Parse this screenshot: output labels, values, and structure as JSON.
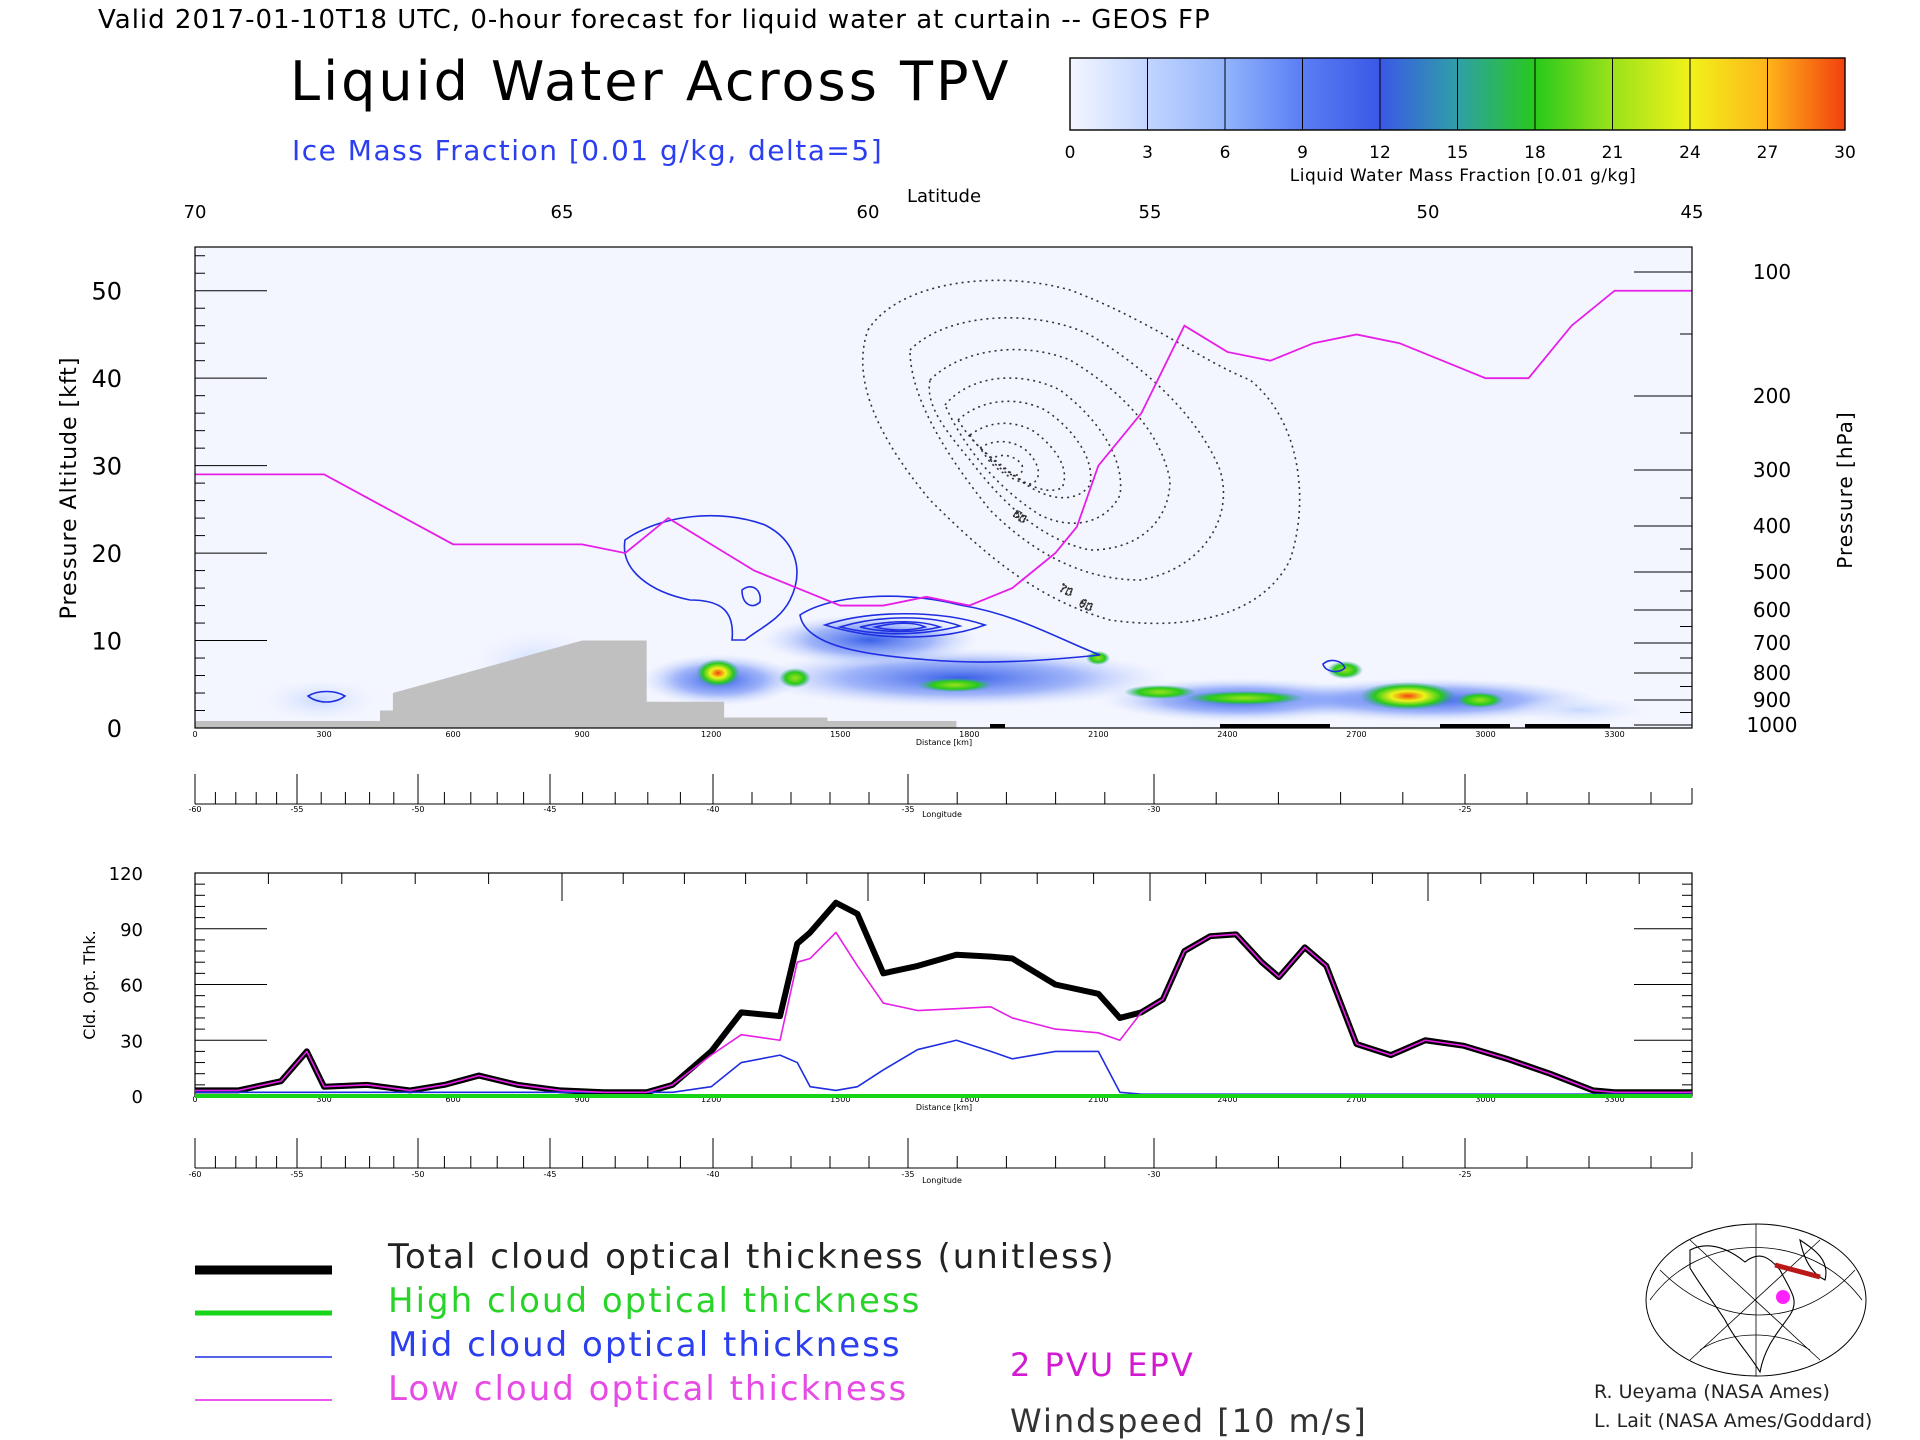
{
  "header": {
    "valid_line": "Valid 2017-01-10T18 UTC, 0-hour forecast for liquid water at curtain -- GEOS FP",
    "title": "Liquid Water Across TPV",
    "subtitle": "Ice Mass Fraction [0.01 g/kg, delta=5]"
  },
  "colorbar": {
    "ticks": [
      "0",
      "3",
      "6",
      "9",
      "12",
      "15",
      "18",
      "21",
      "24",
      "27",
      "30"
    ],
    "label": "Liquid Water Mass Fraction [0.01 g/kg]",
    "colors": [
      "#f4f6ff",
      "#c2d5ff",
      "#93b4fb",
      "#5a7ef5",
      "#3a58e6",
      "#2f9fa8",
      "#28c91c",
      "#9be21a",
      "#f1f21a",
      "#ffb41a",
      "#f2400e"
    ]
  },
  "colors": {
    "ice_contour": "#1e2ee0",
    "epv_line": "#e61ee6",
    "terrain": "#c0c0c0",
    "total_line": "#000000",
    "high_line": "#18d418",
    "mid_line": "#1e2ee0",
    "low_line": "#e61ee6"
  },
  "chart_data": [
    {
      "type": "heatmap",
      "title": "Liquid Water Across TPV",
      "top_axis_label": "Latitude",
      "latitude_ticks": [
        "70",
        "65",
        "60",
        "55",
        "50",
        "45"
      ],
      "ylabel_left": "Pressure Altitude [kft]",
      "ylim_kft": [
        0,
        55
      ],
      "left_ticks": [
        "0",
        "10",
        "20",
        "30",
        "40",
        "50"
      ],
      "ylabel_right": "Pressure [hPa]",
      "pressure_ticks": [
        "100",
        "200",
        "300",
        "400",
        "500",
        "600",
        "700",
        "800",
        "900",
        "1000"
      ],
      "xlabel": "Distance [km]",
      "distance_ticks": [
        "0",
        "300",
        "600",
        "900",
        "1200",
        "1500",
        "1800",
        "2100",
        "2400",
        "2700",
        "3000",
        "3300"
      ],
      "xlim_km": [
        0,
        3480
      ],
      "longitude_label": "Longitude",
      "longitude_ticks": [
        "-60",
        "-55",
        "-50",
        "-45",
        "-40",
        "-35",
        "-30",
        "-25"
      ],
      "contour_labels": [
        "60",
        "70",
        "80"
      ],
      "epv_line": {
        "name": "2 PVU EPV",
        "x_km": [
          0,
          300,
          600,
          900,
          1000,
          1100,
          1200,
          1300,
          1400,
          1500,
          1600,
          1700,
          1800,
          1900,
          2000,
          2050,
          2100,
          2200,
          2300,
          2400,
          2500,
          2600,
          2700,
          2800,
          2900,
          3000,
          3100,
          3200,
          3300,
          3480
        ],
        "y_kft": [
          29,
          29,
          21,
          21,
          20,
          24,
          21,
          18,
          16,
          14,
          14,
          15,
          14,
          16,
          20,
          23,
          30,
          36,
          46,
          43,
          42,
          44,
          45,
          44,
          42,
          40,
          40,
          46,
          50,
          50
        ]
      },
      "terrain": {
        "x_km": [
          0,
          430,
          430,
          460,
          460,
          900,
          1050,
          1050,
          1230,
          1230,
          1470,
          1470,
          1770,
          1770
        ],
        "y_kft": [
          0.8,
          0.8,
          2,
          2,
          4,
          10,
          10,
          3,
          3,
          1.2,
          1.2,
          0.8,
          0.8,
          0
        ]
      }
    },
    {
      "type": "line",
      "ylabel": "Cld. Opt. Thk.",
      "ylim": [
        0,
        120
      ],
      "yticks": [
        "0",
        "30",
        "60",
        "90",
        "120"
      ],
      "xlabel": "Distance [km]",
      "xlim_km": [
        0,
        3480
      ],
      "distance_ticks": [
        "0",
        "300",
        "600",
        "900",
        "1200",
        "1500",
        "1800",
        "2100",
        "2400",
        "2700",
        "3000",
        "3300"
      ],
      "longitude_label": "Longitude",
      "longitude_ticks": [
        "-60",
        "-55",
        "-50",
        "-45",
        "-40",
        "-35",
        "-30",
        "-25"
      ],
      "x": [
        0,
        100,
        200,
        260,
        300,
        400,
        500,
        580,
        660,
        750,
        850,
        950,
        1050,
        1110,
        1200,
        1270,
        1360,
        1400,
        1430,
        1490,
        1540,
        1600,
        1680,
        1770,
        1850,
        1900,
        2000,
        2100,
        2150,
        2200,
        2250,
        2300,
        2360,
        2420,
        2480,
        2520,
        2580,
        2630,
        2700,
        2780,
        2860,
        2950,
        3050,
        3150,
        3250,
        3300,
        3400,
        3480
      ],
      "series": [
        {
          "name": "Total cloud optical thickness (unitless)",
          "values": [
            3,
            3,
            8,
            24,
            5,
            6,
            3,
            6,
            11,
            6,
            3,
            2,
            2,
            6,
            24,
            45,
            43,
            82,
            88,
            104,
            98,
            66,
            70,
            76,
            75,
            74,
            60,
            55,
            42,
            45,
            52,
            78,
            86,
            87,
            72,
            64,
            80,
            70,
            28,
            22,
            30,
            27,
            20,
            12,
            3,
            2,
            2,
            2
          ]
        },
        {
          "name": "High cloud optical thickness",
          "values": [
            0,
            0,
            0,
            0,
            0,
            0,
            0,
            0,
            0,
            0,
            0,
            0,
            0,
            0,
            0,
            0,
            0,
            0,
            0,
            0,
            0,
            0,
            0,
            0,
            0,
            0,
            0,
            0,
            0,
            0,
            0,
            0,
            0,
            0,
            0,
            0,
            0,
            0,
            0,
            0,
            0,
            0,
            0,
            0,
            0,
            0,
            0,
            0
          ]
        },
        {
          "name": "Mid cloud optical thickness",
          "values": [
            2,
            2,
            2,
            2,
            2,
            2,
            2,
            2,
            2,
            2,
            2,
            2,
            2,
            2,
            5,
            18,
            22,
            18,
            5,
            3,
            5,
            14,
            25,
            30,
            24,
            20,
            24,
            24,
            2,
            1,
            1,
            1,
            1,
            1,
            1,
            1,
            1,
            1,
            1,
            1,
            1,
            1,
            1,
            1,
            1,
            1,
            1,
            1
          ]
        },
        {
          "name": "Low cloud optical thickness",
          "values": [
            3,
            3,
            8,
            24,
            5,
            6,
            3,
            6,
            11,
            6,
            3,
            2,
            2,
            6,
            22,
            33,
            30,
            72,
            74,
            88,
            70,
            50,
            46,
            47,
            48,
            42,
            36,
            34,
            30,
            45,
            52,
            78,
            86,
            87,
            72,
            64,
            80,
            70,
            28,
            22,
            30,
            27,
            20,
            12,
            3,
            2,
            2,
            2
          ]
        }
      ]
    }
  ],
  "legend": {
    "total": "Total cloud optical thickness (unitless)",
    "high": "High cloud optical thickness",
    "mid": "Mid cloud optical thickness",
    "low": "Low cloud optical thickness",
    "epv": "2 PVU EPV",
    "windspeed": "Windspeed [10 m/s]"
  },
  "credits": {
    "line1": "R. Ueyama (NASA Ames)",
    "line2": "L. Lait (NASA Ames/Goddard)"
  }
}
